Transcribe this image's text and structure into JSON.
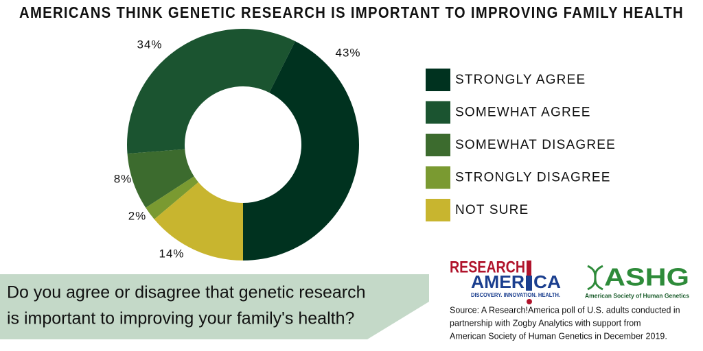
{
  "chart_data": {
    "type": "donut",
    "title": "AMERICANS THINK GENETIC RESEARCH IS IMPORTANT TO IMPROVING FAMILY HEALTH",
    "categories": [
      "STRONGLY AGREE",
      "SOMEWHAT AGREE",
      "SOMEWHAT DISAGREE",
      "STRONGLY DISAGREE",
      "NOT SURE"
    ],
    "values": [
      43,
      34,
      8,
      2,
      14
    ],
    "value_labels": [
      "43%",
      "34%",
      "8%",
      "2%",
      "14%"
    ],
    "colors": [
      "#00321f",
      "#1b5430",
      "#3c6b2e",
      "#7a9a31",
      "#c8b52f"
    ],
    "legend": "right"
  },
  "question": [
    "Do you agree or disagree that genetic research",
    "is important to improving your family's health?"
  ],
  "logos": {
    "research_america": [
      "RESEARCH",
      "AMER",
      "CA"
    ],
    "research_america_tagline": "DISCOVERY. INNOVATION. HEALTH.",
    "ashg": "ASHG",
    "ashg_name": "American Society of Human Genetics"
  },
  "source": [
    "Source:  A Research!America poll of U.S. adults conducted in",
    "partnership with Zogby Analytics with support from",
    "American Society of Human Genetics in December 2019."
  ]
}
